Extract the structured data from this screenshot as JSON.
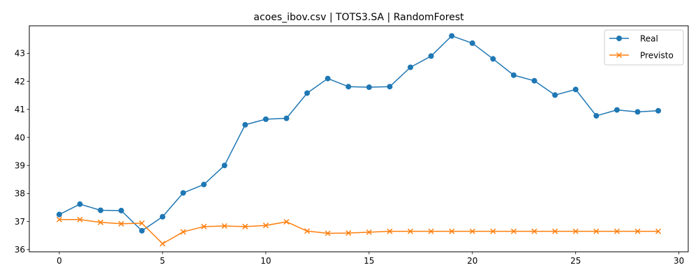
{
  "chart_data": {
    "type": "line",
    "title": "acoes_ibov.csv | TOTS3.SA | RandomForest",
    "xlabel": "",
    "ylabel": "",
    "xlim": [
      -1.45,
      30.45
    ],
    "ylim": [
      35.92,
      43.98
    ],
    "x_ticks": [
      0,
      5,
      10,
      15,
      20,
      25,
      30
    ],
    "y_ticks": [
      36,
      37,
      38,
      39,
      40,
      41,
      42,
      43
    ],
    "grid": false,
    "legend_position": "top-right",
    "x": [
      0,
      1,
      2,
      3,
      4,
      5,
      6,
      7,
      8,
      9,
      10,
      11,
      12,
      13,
      14,
      15,
      16,
      17,
      18,
      19,
      20,
      21,
      22,
      23,
      24,
      25,
      26,
      27,
      28,
      29
    ],
    "series": [
      {
        "name": "Real",
        "color": "#1f77b4",
        "marker": "circle",
        "values": [
          37.25,
          37.62,
          37.4,
          37.39,
          36.67,
          37.17,
          38.02,
          38.32,
          39.0,
          40.45,
          40.65,
          40.68,
          41.58,
          42.1,
          41.81,
          41.79,
          41.81,
          42.5,
          42.9,
          43.62,
          43.36,
          42.8,
          42.22,
          42.02,
          41.51,
          41.71,
          40.77,
          40.98,
          40.91,
          40.95
        ]
      },
      {
        "name": "Previsto",
        "color": "#ff7f0e",
        "marker": "x",
        "values": [
          37.07,
          37.07,
          36.97,
          36.92,
          36.94,
          36.21,
          36.63,
          36.82,
          36.84,
          36.82,
          36.86,
          36.99,
          36.66,
          36.58,
          36.59,
          36.62,
          36.65,
          36.65,
          36.65,
          36.65,
          36.65,
          36.65,
          36.65,
          36.65,
          36.65,
          36.65,
          36.65,
          36.65,
          36.65,
          36.65
        ]
      }
    ]
  }
}
